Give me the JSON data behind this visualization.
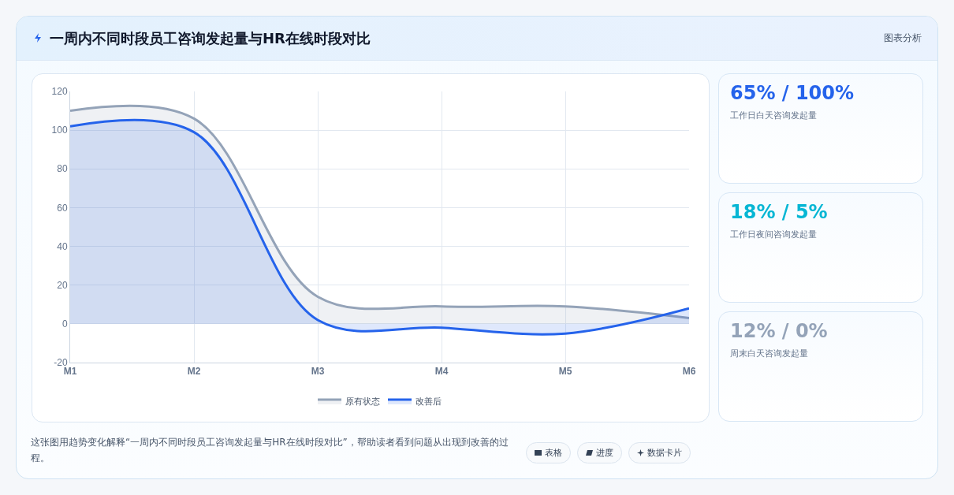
{
  "chart_data": [
    {
      "type": "area",
      "title": "一周内不同时段员工咨询发起量与HR在线时段对比",
      "categories": [
        "M1",
        "M2",
        "M3",
        "M4",
        "M5",
        "M6"
      ],
      "series": [
        {
          "name": "原有状态",
          "color": "#94a3b8",
          "values": [
            110,
            106,
            14,
            9,
            9,
            3
          ]
        },
        {
          "name": "改善后",
          "color": "#2563eb",
          "values": [
            102,
            99,
            2,
            -2,
            -5,
            8
          ]
        }
      ],
      "ylim": [
        -20,
        120
      ],
      "yticks": [
        -20,
        0,
        20,
        40,
        60,
        80,
        100,
        120
      ],
      "grid": true,
      "legend": "bottom",
      "marker": "none",
      "line_style": "solid",
      "annotations": [
        "图表分析",
        "这张图用趋势变化解释“一周内不同时段员工咨询发起量与HR在线时段对比”，帮助读者看到问题从出现到改善的过程。",
        "表格",
        "进度",
        "数据卡片"
      ]
    },
    {
      "type": "other",
      "title": "65% / 100%",
      "subtitle": "工作日白天咨询发起量"
    },
    {
      "type": "other",
      "title": "18% / 5%",
      "subtitle": "工作日夜间咨询发起量"
    },
    {
      "type": "other",
      "title": "12% / 0%",
      "subtitle": "周末白天咨询发起量"
    }
  ]
}
